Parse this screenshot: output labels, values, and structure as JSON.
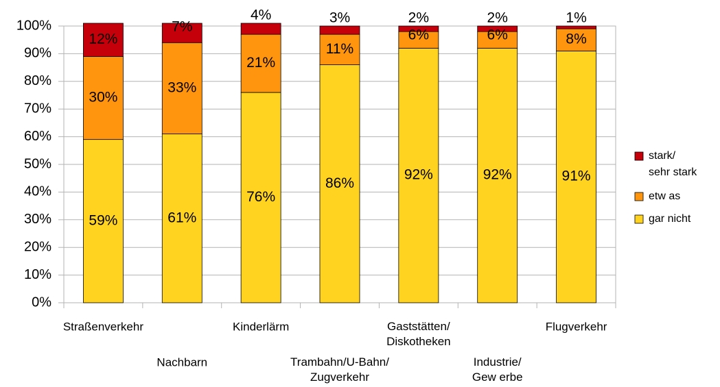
{
  "chart_data": {
    "type": "stacked_bar",
    "categories": [
      "Straßenverkehr",
      "Nachbarn",
      "Kinderlärm",
      "Trambahn/U-Bahn/\nZugverkehr",
      "Gaststätten/\nDiskotheken",
      "Industrie/\nGew erbe",
      "Flugverkehr"
    ],
    "series": [
      {
        "name": "gar nicht",
        "color": "#ffd320",
        "values": [
          59,
          61,
          76,
          86,
          92,
          92,
          91
        ],
        "value_labels": [
          "59%",
          "61%",
          "76%",
          "86%",
          "92%",
          "92%",
          "91%"
        ]
      },
      {
        "name": "etw as",
        "color": "#ff950e",
        "values": [
          30,
          33,
          21,
          11,
          6,
          6,
          8
        ],
        "value_labels": [
          "30%",
          "33%",
          "21%",
          "11%",
          "6%",
          "6%",
          "8%"
        ]
      },
      {
        "name": "stark/\nsehr stark",
        "color": "#c5000b",
        "values": [
          12,
          7,
          4,
          3,
          2,
          2,
          1
        ],
        "value_labels": [
          "12%",
          "7%",
          "4%",
          "3%",
          "2%",
          "2%",
          "1%"
        ]
      }
    ],
    "ylim": [
      0,
      100
    ],
    "yticks": [
      {
        "value": 0,
        "label": "0%"
      },
      {
        "value": 10,
        "label": "10%"
      },
      {
        "value": 20,
        "label": "20%"
      },
      {
        "value": 30,
        "label": "30%"
      },
      {
        "value": 40,
        "label": "40%"
      },
      {
        "value": 50,
        "label": "50%"
      },
      {
        "value": 60,
        "label": "60%"
      },
      {
        "value": 70,
        "label": "70%"
      },
      {
        "value": 80,
        "label": "80%"
      },
      {
        "value": 90,
        "label": "90%"
      },
      {
        "value": 100,
        "label": "100%"
      }
    ],
    "grid": true,
    "legend": "right"
  }
}
